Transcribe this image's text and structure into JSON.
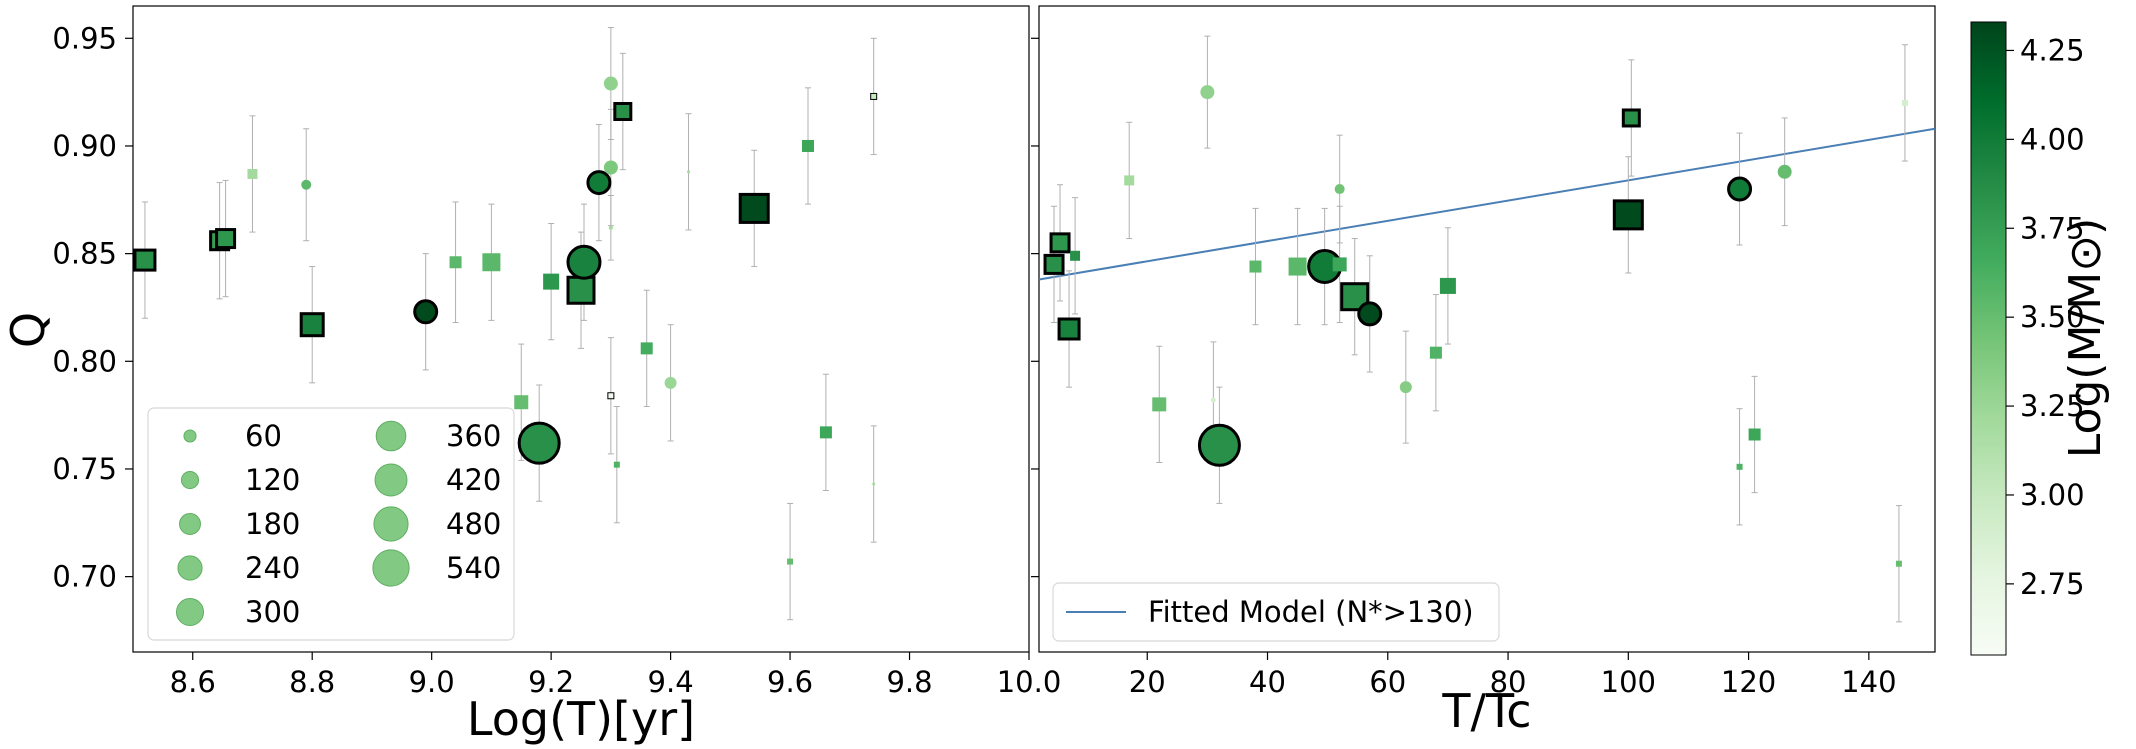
{
  "chart_data": [
    {
      "type": "scatter",
      "xlabel": "Log(T)[yr]",
      "ylabel": "Q",
      "xlim": [
        8.5,
        10.0
      ],
      "ylim": [
        0.665,
        0.965
      ],
      "xticks": [
        8.6,
        8.8,
        9.0,
        9.2,
        9.4,
        9.6,
        9.8,
        10.0
      ],
      "xtick_labels": [
        "8.6",
        "8.8",
        "9.0",
        "9.2",
        "9.4",
        "9.6",
        "9.8",
        "10.0"
      ],
      "yticks": [
        0.7,
        0.75,
        0.8,
        0.85,
        0.9,
        0.95
      ],
      "ytick_labels": [
        "0.70",
        "0.75",
        "0.80",
        "0.85",
        "0.90",
        "0.95"
      ],
      "legend": {
        "title": "",
        "placement": "lower-left",
        "entries": [
          {
            "label": "60",
            "size": 60
          },
          {
            "label": "120",
            "size": 120
          },
          {
            "label": "180",
            "size": 180
          },
          {
            "label": "240",
            "size": 240
          },
          {
            "label": "300",
            "size": 300
          },
          {
            "label": "360",
            "size": 360
          },
          {
            "label": "420",
            "size": 420
          },
          {
            "label": "480",
            "size": 480
          },
          {
            "label": "540",
            "size": 540
          }
        ]
      },
      "points": [
        {
          "x": 8.52,
          "y": 0.847,
          "err": 0.027,
          "shape": "square",
          "size": 10,
          "logm": 3.85,
          "outline": true
        },
        {
          "x": 8.645,
          "y": 0.856,
          "err": 0.027,
          "shape": "square",
          "size": 9,
          "logm": 3.75,
          "outline": true
        },
        {
          "x": 8.655,
          "y": 0.857,
          "err": 0.027,
          "shape": "square",
          "size": 9,
          "logm": 3.8,
          "outline": true
        },
        {
          "x": 8.7,
          "y": 0.887,
          "err": 0.027,
          "shape": "square",
          "size": 5,
          "logm": 3.2,
          "outline": false
        },
        {
          "x": 8.79,
          "y": 0.882,
          "err": 0.026,
          "shape": "circle",
          "size": 5,
          "logm": 3.55,
          "outline": false
        },
        {
          "x": 8.8,
          "y": 0.817,
          "err": 0.027,
          "shape": "square",
          "size": 11,
          "logm": 3.95,
          "outline": true
        },
        {
          "x": 8.99,
          "y": 0.823,
          "err": 0.027,
          "shape": "circle",
          "size": 11,
          "logm": 4.3,
          "outline": true
        },
        {
          "x": 9.04,
          "y": 0.846,
          "err": 0.028,
          "shape": "square",
          "size": 6,
          "logm": 3.55,
          "outline": false
        },
        {
          "x": 9.1,
          "y": 0.846,
          "err": 0.027,
          "shape": "square",
          "size": 9,
          "logm": 3.55,
          "outline": false
        },
        {
          "x": 9.15,
          "y": 0.781,
          "err": 0.027,
          "shape": "square",
          "size": 7,
          "logm": 3.5,
          "outline": false
        },
        {
          "x": 9.18,
          "y": 0.762,
          "err": 0.027,
          "shape": "circle",
          "size": 20,
          "logm": 3.85,
          "outline": true
        },
        {
          "x": 9.2,
          "y": 0.837,
          "err": 0.027,
          "shape": "square",
          "size": 8,
          "logm": 3.8,
          "outline": false
        },
        {
          "x": 9.25,
          "y": 0.833,
          "err": 0.027,
          "shape": "square",
          "size": 13,
          "logm": 3.85,
          "outline": true
        },
        {
          "x": 9.255,
          "y": 0.846,
          "err": 0.027,
          "shape": "circle",
          "size": 16,
          "logm": 3.95,
          "outline": true
        },
        {
          "x": 9.28,
          "y": 0.883,
          "err": 0.027,
          "shape": "circle",
          "size": 11,
          "logm": 4.0,
          "outline": true
        },
        {
          "x": 9.3,
          "y": 0.929,
          "err": 0.026,
          "shape": "circle",
          "size": 7,
          "logm": 3.3,
          "outline": false
        },
        {
          "x": 9.3,
          "y": 0.89,
          "err": 0.027,
          "shape": "circle",
          "size": 7,
          "logm": 3.4,
          "outline": false
        },
        {
          "x": 9.3,
          "y": 0.862,
          "err": 0.015,
          "shape": "circle",
          "size": 2,
          "logm": 3.2,
          "outline": false
        },
        {
          "x": 9.32,
          "y": 0.916,
          "err": 0.027,
          "shape": "square",
          "size": 8,
          "logm": 3.85,
          "outline": true
        },
        {
          "x": 9.3,
          "y": 0.784,
          "err": 0.027,
          "shape": "square",
          "size": 3,
          "logm": 2.6,
          "outline": true
        },
        {
          "x": 9.31,
          "y": 0.752,
          "err": 0.027,
          "shape": "square",
          "size": 3,
          "logm": 3.6,
          "outline": false
        },
        {
          "x": 9.36,
          "y": 0.806,
          "err": 0.027,
          "shape": "square",
          "size": 6,
          "logm": 3.65,
          "outline": false
        },
        {
          "x": 9.4,
          "y": 0.79,
          "err": 0.027,
          "shape": "circle",
          "size": 6,
          "logm": 3.25,
          "outline": false
        },
        {
          "x": 9.43,
          "y": 0.888,
          "err": 0.027,
          "shape": "circle",
          "size": 1.5,
          "logm": 3.2,
          "outline": false
        },
        {
          "x": 9.54,
          "y": 0.871,
          "err": 0.027,
          "shape": "square",
          "size": 14,
          "logm": 4.3,
          "outline": true
        },
        {
          "x": 9.6,
          "y": 0.707,
          "err": 0.027,
          "shape": "square",
          "size": 3,
          "logm": 3.5,
          "outline": false
        },
        {
          "x": 9.63,
          "y": 0.9,
          "err": 0.027,
          "shape": "square",
          "size": 6,
          "logm": 3.7,
          "outline": false
        },
        {
          "x": 9.66,
          "y": 0.767,
          "err": 0.027,
          "shape": "square",
          "size": 6,
          "logm": 3.7,
          "outline": false
        },
        {
          "x": 9.74,
          "y": 0.923,
          "err": 0.027,
          "shape": "square",
          "size": 3,
          "logm": 3.0,
          "outline": true
        },
        {
          "x": 9.74,
          "y": 0.743,
          "err": 0.027,
          "shape": "circle",
          "size": 1.5,
          "logm": 3.2,
          "outline": false
        }
      ]
    },
    {
      "type": "scatter",
      "xlabel": "T/Tc",
      "ylabel": "",
      "xlim": [
        2,
        151
      ],
      "ylim": [
        0.665,
        0.965
      ],
      "xticks": [
        20,
        40,
        60,
        80,
        100,
        120,
        140
      ],
      "xtick_labels": [
        "20",
        "40",
        "60",
        "80",
        "100",
        "120",
        "140"
      ],
      "yticks": [
        0.7,
        0.75,
        0.8,
        0.85,
        0.9,
        0.95
      ],
      "legend": {
        "placement": "lower-left",
        "entries": [
          {
            "label": "Fitted Model (N*>130)",
            "color": "#4a7fb5"
          }
        ]
      },
      "fit_line": {
        "x": [
          2,
          151
        ],
        "y": [
          0.838,
          0.908
        ]
      },
      "points": [
        {
          "x": 4.5,
          "y": 0.845,
          "err": 0.027,
          "shape": "square",
          "size": 9,
          "logm": 3.85,
          "outline": true
        },
        {
          "x": 5.5,
          "y": 0.855,
          "err": 0.027,
          "shape": "square",
          "size": 9,
          "logm": 3.8,
          "outline": true
        },
        {
          "x": 8.0,
          "y": 0.849,
          "err": 0.027,
          "shape": "square",
          "size": 5,
          "logm": 3.85,
          "outline": false
        },
        {
          "x": 7.0,
          "y": 0.815,
          "err": 0.027,
          "shape": "square",
          "size": 10,
          "logm": 3.95,
          "outline": true
        },
        {
          "x": 17,
          "y": 0.884,
          "err": 0.027,
          "shape": "square",
          "size": 5,
          "logm": 3.2,
          "outline": false
        },
        {
          "x": 22,
          "y": 0.78,
          "err": 0.027,
          "shape": "square",
          "size": 7,
          "logm": 3.5,
          "outline": false
        },
        {
          "x": 30,
          "y": 0.925,
          "err": 0.026,
          "shape": "circle",
          "size": 7,
          "logm": 3.3,
          "outline": false
        },
        {
          "x": 31,
          "y": 0.782,
          "err": 0.027,
          "shape": "circle",
          "size": 2.5,
          "logm": 2.9,
          "outline": false
        },
        {
          "x": 32,
          "y": 0.761,
          "err": 0.027,
          "shape": "circle",
          "size": 20,
          "logm": 3.85,
          "outline": true
        },
        {
          "x": 38,
          "y": 0.844,
          "err": 0.027,
          "shape": "square",
          "size": 6,
          "logm": 3.55,
          "outline": false
        },
        {
          "x": 45,
          "y": 0.844,
          "err": 0.027,
          "shape": "square",
          "size": 9,
          "logm": 3.55,
          "outline": false
        },
        {
          "x": 49.5,
          "y": 0.844,
          "err": 0.027,
          "shape": "circle",
          "size": 16,
          "logm": 4.0,
          "outline": true
        },
        {
          "x": 52,
          "y": 0.845,
          "err": 0.027,
          "shape": "square",
          "size": 7,
          "logm": 3.7,
          "outline": false
        },
        {
          "x": 52,
          "y": 0.88,
          "err": 0.025,
          "shape": "circle",
          "size": 5,
          "logm": 3.45,
          "outline": false
        },
        {
          "x": 54.5,
          "y": 0.83,
          "err": 0.027,
          "shape": "square",
          "size": 13,
          "logm": 3.85,
          "outline": true
        },
        {
          "x": 57,
          "y": 0.822,
          "err": 0.027,
          "shape": "circle",
          "size": 11,
          "logm": 4.3,
          "outline": true
        },
        {
          "x": 63,
          "y": 0.788,
          "err": 0.026,
          "shape": "circle",
          "size": 6,
          "logm": 3.35,
          "outline": false
        },
        {
          "x": 68,
          "y": 0.804,
          "err": 0.027,
          "shape": "square",
          "size": 6,
          "logm": 3.6,
          "outline": false
        },
        {
          "x": 70,
          "y": 0.835,
          "err": 0.027,
          "shape": "square",
          "size": 8,
          "logm": 3.8,
          "outline": false
        },
        {
          "x": 100,
          "y": 0.868,
          "err": 0.027,
          "shape": "square",
          "size": 14,
          "logm": 4.3,
          "outline": true
        },
        {
          "x": 100.5,
          "y": 0.913,
          "err": 0.027,
          "shape": "square",
          "size": 8,
          "logm": 3.85,
          "outline": true
        },
        {
          "x": 118.5,
          "y": 0.88,
          "err": 0.026,
          "shape": "circle",
          "size": 11,
          "logm": 4.0,
          "outline": true
        },
        {
          "x": 118.5,
          "y": 0.751,
          "err": 0.027,
          "shape": "square",
          "size": 3,
          "logm": 3.6,
          "outline": false
        },
        {
          "x": 121,
          "y": 0.766,
          "err": 0.027,
          "shape": "square",
          "size": 6,
          "logm": 3.7,
          "outline": false
        },
        {
          "x": 126,
          "y": 0.888,
          "err": 0.025,
          "shape": "circle",
          "size": 7,
          "logm": 3.5,
          "outline": false
        },
        {
          "x": 145,
          "y": 0.706,
          "err": 0.027,
          "shape": "square",
          "size": 3,
          "logm": 3.5,
          "outline": false
        },
        {
          "x": 146,
          "y": 0.92,
          "err": 0.027,
          "shape": "square",
          "size": 3,
          "logm": 2.9,
          "outline": false
        }
      ]
    }
  ],
  "colorbar": {
    "label": "Log(M/M⊙)",
    "range": [
      2.55,
      4.33
    ],
    "ticks": [
      2.75,
      3.0,
      3.25,
      3.5,
      3.75,
      4.0,
      4.25
    ],
    "tick_labels": [
      "2.75",
      "3.00",
      "3.25",
      "3.50",
      "3.75",
      "4.00",
      "4.25"
    ],
    "colormap": "Greens",
    "colors": [
      "#f7fcf5",
      "#e5f5e0",
      "#c7e9c0",
      "#a1d99b",
      "#74c476",
      "#41ab5d",
      "#238b45",
      "#006d2c",
      "#00441b"
    ]
  },
  "colors": {
    "legend_marker": "#74c476",
    "fit_line": "#4a7fb5",
    "errorbar": "#b0b0b0"
  }
}
